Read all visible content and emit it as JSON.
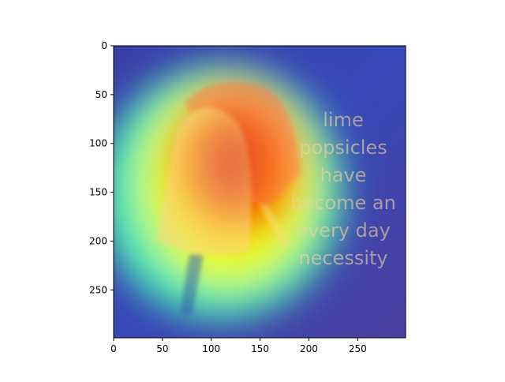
{
  "chart_data": {
    "type": "heatmap",
    "title": "",
    "xlabel": "",
    "ylabel": "",
    "xlim": [
      0,
      299
    ],
    "ylim": [
      299,
      0
    ],
    "x_ticks": [
      0,
      50,
      100,
      150,
      200,
      250
    ],
    "y_ticks": [
      0,
      50,
      100,
      150,
      200,
      250
    ],
    "colormap": "jet",
    "overlay_alpha": 0.55,
    "image_text_lines": [
      "lime",
      "popsicles",
      "have",
      "become an",
      "every day",
      "necessity"
    ],
    "heat_regions": [
      {
        "cx": 110,
        "cy": 150,
        "rx": 125,
        "ry": 130,
        "level": 0.45
      },
      {
        "cx": 118,
        "cy": 140,
        "rx": 90,
        "ry": 105,
        "level": 0.62
      },
      {
        "cx": 125,
        "cy": 120,
        "rx": 65,
        "ry": 75,
        "level": 0.78
      },
      {
        "cx": 120,
        "cy": 120,
        "rx": 40,
        "ry": 50,
        "level": 0.92
      }
    ]
  }
}
